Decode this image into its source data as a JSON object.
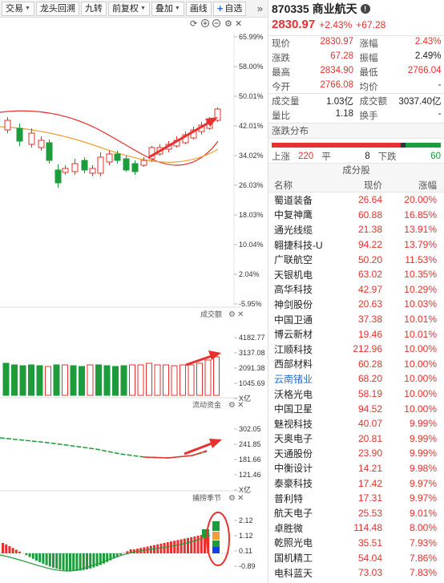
{
  "toolbar": {
    "items": [
      "交易",
      "龙头回溯",
      "九转",
      "前复权",
      "叠加",
      "画线"
    ],
    "add_label": "自选",
    "more_label": "»"
  },
  "main_chart": {
    "y_ticks": [
      "65.99%",
      "58.00%",
      "50.01%",
      "42.01%",
      "34.02%",
      "26.03%",
      "18.03%",
      "10.04%",
      "2.04%",
      "-5.95%"
    ]
  },
  "volume_panel": {
    "title": "成交额",
    "y_ticks": [
      "4182.77",
      "3137.08",
      "2091.38",
      "1045.69",
      "X亿"
    ]
  },
  "flow_panel": {
    "title": "流动资金",
    "y_ticks": [
      "302.05",
      "241.85",
      "181.66",
      "121.46",
      "X亿"
    ]
  },
  "season_panel": {
    "title": "捕捞季节",
    "y_ticks": [
      "2.12",
      "1.12",
      "0.11",
      "-0.89"
    ]
  },
  "stock": {
    "code": "870335",
    "name": "商业航天",
    "price": "2830.97",
    "change_pct": "+2.43%",
    "change": "+67.28"
  },
  "quote": [
    [
      {
        "k": "现价",
        "v": "2830.97",
        "c": "red"
      },
      {
        "k": "涨幅",
        "v": "2.43%",
        "c": "red"
      }
    ],
    [
      {
        "k": "涨跌",
        "v": "67.28",
        "c": "red"
      },
      {
        "k": "振幅",
        "v": "2.49%",
        "c": "black"
      }
    ],
    [
      {
        "k": "最高",
        "v": "2834.90",
        "c": "red"
      },
      {
        "k": "最低",
        "v": "2766.04",
        "c": "red"
      }
    ],
    [
      {
        "k": "今开",
        "v": "2766.08",
        "c": "red"
      },
      {
        "k": "均价",
        "v": "-",
        "c": "black"
      }
    ],
    [
      {
        "k": "成交量",
        "v": "1.03亿",
        "c": "black"
      },
      {
        "k": "成交额",
        "v": "3037.40亿",
        "c": "black"
      }
    ],
    [
      {
        "k": "量比",
        "v": "1.18",
        "c": "black"
      },
      {
        "k": "换手",
        "v": "-",
        "c": "black"
      }
    ]
  ],
  "distribution": {
    "title": "涨跌分布",
    "up_label": "上涨",
    "up": "220",
    "flat_label": "平",
    "flat": "8",
    "down_label": "下跌",
    "down": "60"
  },
  "components": {
    "title": "成分股",
    "headers": [
      "名称",
      "现价",
      "涨幅"
    ],
    "rows": [
      [
        "蜀道装备",
        "26.64",
        "20.00%"
      ],
      [
        "中复神鹰",
        "60.88",
        "16.85%"
      ],
      [
        "通光线缆",
        "21.38",
        "13.91%"
      ],
      [
        "翱捷科技-U",
        "94.22",
        "13.79%"
      ],
      [
        "广联航空",
        "50.20",
        "11.53%"
      ],
      [
        "天银机电",
        "63.02",
        "10.35%"
      ],
      [
        "高华科技",
        "42.97",
        "10.29%"
      ],
      [
        "神剑股份",
        "20.63",
        "10.03%"
      ],
      [
        "中国卫通",
        "37.38",
        "10.01%"
      ],
      [
        "博云新材",
        "19.46",
        "10.01%"
      ],
      [
        "江顺科技",
        "212.96",
        "10.00%"
      ],
      [
        "西部材料",
        "60.28",
        "10.00%"
      ],
      [
        "云南锗业",
        "68.20",
        "10.00%"
      ],
      [
        "沃格光电",
        "58.19",
        "10.00%"
      ],
      [
        "中国卫星",
        "94.52",
        "10.00%"
      ],
      [
        "魅视科技",
        "40.07",
        "9.99%"
      ],
      [
        "天奥电子",
        "20.81",
        "9.99%"
      ],
      [
        "天通股份",
        "23.90",
        "9.99%"
      ],
      [
        "中衡设计",
        "14.21",
        "9.98%"
      ],
      [
        "泰豪科技",
        "17.42",
        "9.97%"
      ],
      [
        "普利特",
        "17.31",
        "9.97%"
      ],
      [
        "航天电子",
        "25.53",
        "9.01%"
      ],
      [
        "卓胜微",
        "114.48",
        "8.00%"
      ],
      [
        "乾照光电",
        "35.51",
        "7.93%"
      ],
      [
        "国机精工",
        "54.04",
        "7.86%"
      ],
      [
        "电科蓝天",
        "73.03",
        "7.83%"
      ]
    ]
  },
  "colors": {
    "up": "#e8312e",
    "down": "#1e9b3a",
    "highlight_name": "#2a6fd6",
    "ma_short": "#e8312e",
    "ma_long": "#f0a030"
  },
  "icons": [
    "refresh-icon",
    "zoom-in-icon",
    "zoom-out-icon",
    "settings-icon",
    "close-icon",
    "info-icon",
    "plus-icon"
  ]
}
